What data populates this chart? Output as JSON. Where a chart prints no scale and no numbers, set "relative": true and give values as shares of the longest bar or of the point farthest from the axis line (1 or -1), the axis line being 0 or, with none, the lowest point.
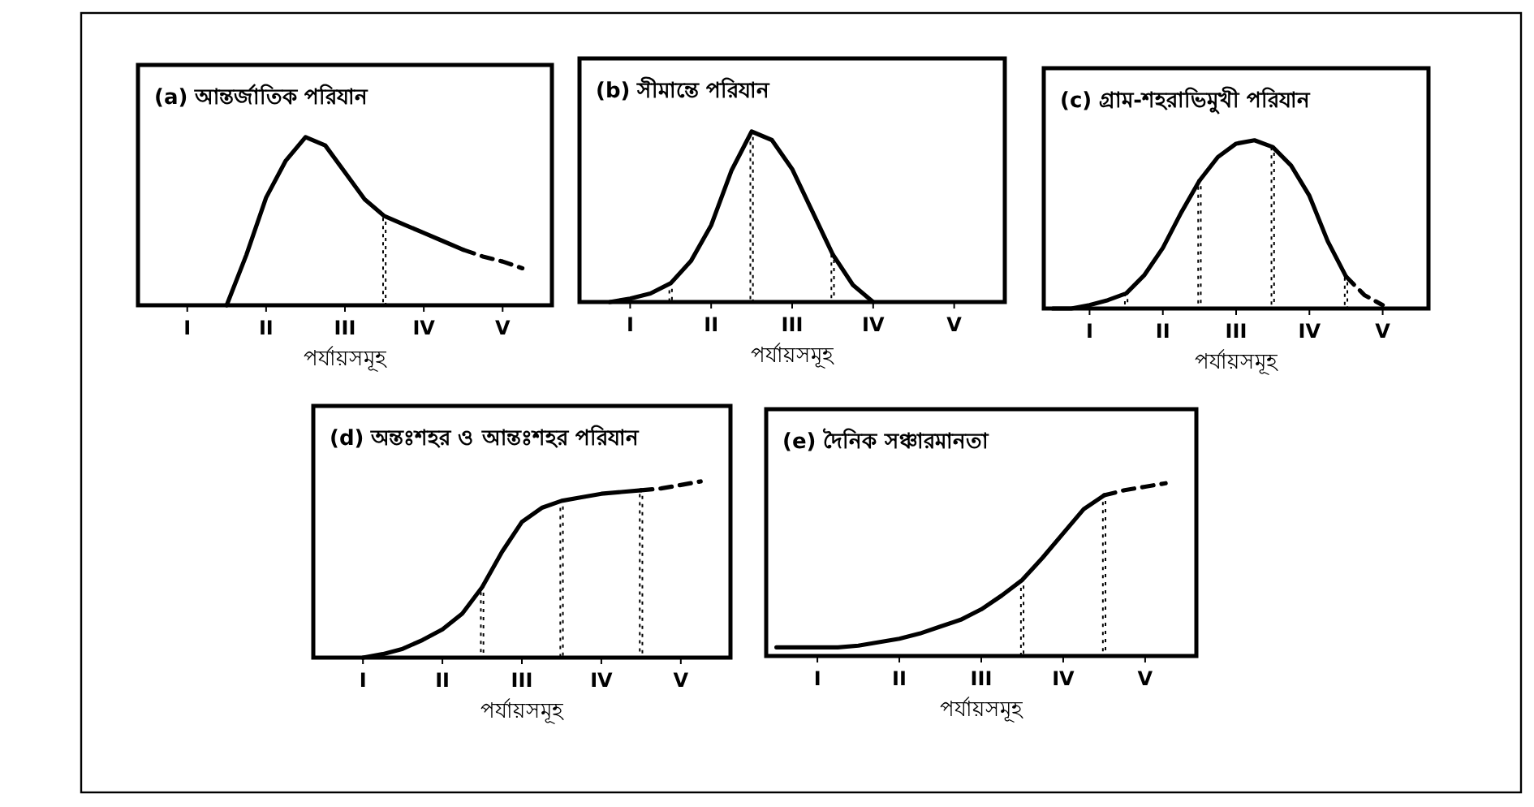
{
  "chart_data": [
    {
      "type": "line",
      "title": "(a) আন্তর্জাতিক পরিযান",
      "xlabel": "পর্যায়সমূহ",
      "relative": true,
      "tick_labels": "x",
      "categories": [
        null,
        null,
        "I",
        null,
        null,
        null,
        "II",
        null,
        null,
        null,
        "III",
        null,
        null,
        null,
        "IV",
        null,
        null,
        null,
        "V",
        null,
        null
      ],
      "series": [
        {
          "color": "#000000",
          "line_style": "solid",
          "values": [
            null,
            null,
            null,
            null,
            0,
            0.3,
            0.64,
            0.86,
            1,
            0.95,
            0.79,
            0.63,
            0.53,
            0.48,
            0.43,
            0.38,
            0.33,
            null,
            null,
            null,
            null
          ]
        },
        {
          "color": "#000000",
          "line_style": "dashed",
          "values": [
            null,
            null,
            null,
            null,
            null,
            null,
            null,
            null,
            null,
            null,
            null,
            null,
            null,
            null,
            null,
            null,
            0.33,
            0.29,
            0.26,
            0.22,
            null
          ]
        },
        {
          "type": "bar",
          "color": "#000000",
          "line_style": "dotted",
          "values": [
            null,
            null,
            null,
            null,
            null,
            null,
            null,
            null,
            null,
            null,
            null,
            null,
            0.53,
            null,
            null,
            null,
            null,
            null,
            null,
            null,
            null
          ]
        }
      ]
    },
    {
      "type": "line",
      "title": "(b) সীমান্তে পরিযান",
      "xlabel": "পর্যায়সমূহ",
      "relative": true,
      "tick_labels": "x",
      "categories": [
        null,
        null,
        "I",
        null,
        null,
        null,
        "II",
        null,
        null,
        null,
        "III",
        null,
        null,
        null,
        "IV",
        null,
        null,
        null,
        "V",
        null,
        null
      ],
      "series": [
        {
          "color": "#000000",
          "line_style": "solid",
          "values": [
            null,
            0,
            0.02,
            0.05,
            0.11,
            0.24,
            0.45,
            0.77,
            1,
            0.95,
            0.78,
            0.53,
            0.28,
            0.1,
            0,
            null,
            null,
            null,
            null,
            null,
            null
          ]
        },
        {
          "type": "bar",
          "color": "#000000",
          "line_style": "dotted",
          "values": [
            null,
            null,
            null,
            null,
            0.11,
            null,
            null,
            null,
            1,
            null,
            null,
            null,
            0.28,
            null,
            null,
            null,
            null,
            null,
            null,
            null,
            null
          ]
        }
      ]
    },
    {
      "type": "line",
      "title": "(c) গ্রাম-শহরাভিমুখী পরিযান",
      "xlabel": "পর্যায়সমূহ",
      "relative": true,
      "tick_labels": "x",
      "categories": [
        null,
        null,
        "I",
        null,
        null,
        null,
        "II",
        null,
        null,
        null,
        "III",
        null,
        null,
        null,
        "IV",
        null,
        null,
        null,
        "V",
        null,
        null
      ],
      "series": [
        {
          "color": "#000000",
          "line_style": "solid",
          "values": [
            0,
            0,
            0.02,
            0.05,
            0.09,
            0.2,
            0.36,
            0.57,
            0.76,
            0.9,
            0.98,
            1,
            0.96,
            0.85,
            0.67,
            0.4,
            0.19,
            null,
            null,
            null,
            null
          ]
        },
        {
          "color": "#000000",
          "line_style": "dashed",
          "values": [
            null,
            null,
            null,
            null,
            null,
            null,
            null,
            null,
            null,
            null,
            null,
            null,
            null,
            null,
            null,
            null,
            0.19,
            0.08,
            0.02,
            null,
            null
          ]
        },
        {
          "type": "bar",
          "color": "#000000",
          "line_style": "dotted",
          "values": [
            null,
            null,
            null,
            null,
            0.09,
            null,
            null,
            null,
            0.76,
            null,
            null,
            null,
            0.96,
            null,
            null,
            null,
            0.19,
            null,
            null,
            null,
            null
          ]
        }
      ]
    },
    {
      "type": "line",
      "title": "(d) অন্তঃশহর ও আন্তঃশহর পরিযান",
      "xlabel": "পর্যায়সমূহ",
      "relative": true,
      "tick_labels": "x",
      "categories": [
        null,
        null,
        "I",
        null,
        null,
        null,
        "II",
        null,
        null,
        null,
        "III",
        null,
        null,
        null,
        "IV",
        null,
        null,
        null,
        "V",
        null,
        null
      ],
      "series": [
        {
          "color": "#000000",
          "line_style": "solid",
          "values": [
            null,
            null,
            0,
            0.02,
            0.05,
            0.1,
            0.16,
            0.25,
            0.4,
            0.6,
            0.77,
            0.85,
            0.89,
            0.91,
            0.93,
            0.94,
            0.95,
            null,
            null,
            null,
            null
          ]
        },
        {
          "color": "#000000",
          "line_style": "dashed",
          "values": [
            null,
            null,
            null,
            null,
            null,
            null,
            null,
            null,
            null,
            null,
            null,
            null,
            null,
            null,
            null,
            null,
            0.95,
            0.96,
            0.98,
            1,
            null
          ]
        },
        {
          "type": "bar",
          "color": "#000000",
          "line_style": "dotted",
          "values": [
            null,
            null,
            null,
            null,
            null,
            null,
            null,
            null,
            0.4,
            null,
            null,
            null,
            0.89,
            null,
            null,
            null,
            0.95,
            null,
            null,
            null,
            null
          ]
        }
      ]
    },
    {
      "type": "line",
      "title": "(e) দৈনিক সঞ্চারমানতা",
      "xlabel": "পর্যায়সমূহ",
      "relative": true,
      "tick_labels": "x",
      "categories": [
        null,
        null,
        "I",
        null,
        null,
        null,
        "II",
        null,
        null,
        null,
        "III",
        null,
        null,
        null,
        "IV",
        null,
        null,
        null,
        "V",
        null,
        null
      ],
      "series": [
        {
          "color": "#000000",
          "line_style": "solid",
          "values": [
            0.05,
            0.05,
            0.05,
            0.05,
            0.06,
            0.08,
            0.1,
            0.13,
            0.17,
            0.21,
            0.27,
            0.35,
            0.44,
            0.57,
            0.71,
            0.85,
            0.93,
            null,
            null,
            null,
            null
          ]
        },
        {
          "color": "#000000",
          "line_style": "dashed",
          "values": [
            null,
            null,
            null,
            null,
            null,
            null,
            null,
            null,
            null,
            null,
            null,
            null,
            null,
            null,
            null,
            null,
            0.93,
            0.96,
            0.98,
            1,
            null
          ]
        },
        {
          "type": "bar",
          "color": "#000000",
          "line_style": "dotted",
          "values": [
            null,
            null,
            null,
            null,
            null,
            null,
            null,
            null,
            null,
            null,
            null,
            null,
            0.44,
            null,
            null,
            null,
            0.93,
            null,
            null,
            null,
            null
          ]
        }
      ]
    }
  ]
}
